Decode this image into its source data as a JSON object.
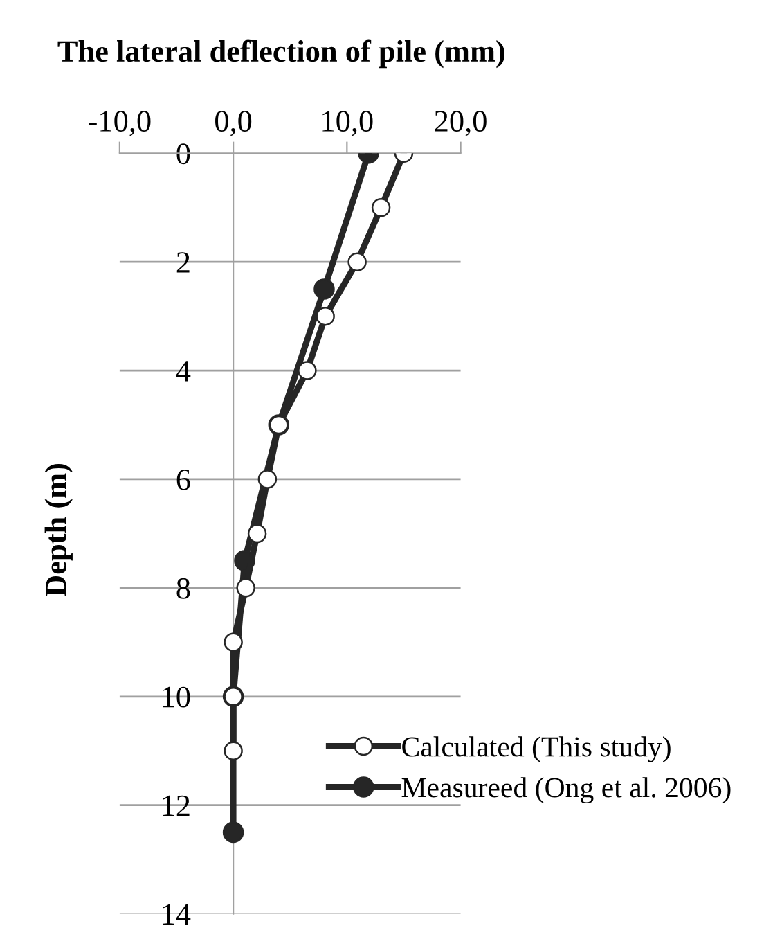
{
  "chart_data": {
    "type": "line",
    "title": "The lateral deflection of pile (mm)",
    "ylabel": "Depth (m)",
    "xlim": [
      -10,
      20
    ],
    "xticks": [
      {
        "value": -10,
        "label": "-10,0"
      },
      {
        "value": 0,
        "label": "0,0"
      },
      {
        "value": 10,
        "label": "10,0"
      },
      {
        "value": 20,
        "label": "20,0"
      }
    ],
    "ylim": [
      14,
      0
    ],
    "yticks": [
      0,
      2,
      4,
      6,
      8,
      10,
      12,
      14
    ],
    "grid": "y",
    "legend": "bottom right",
    "series": [
      {
        "name": "Calculated (This study)",
        "color": "#262626",
        "marker": "circle",
        "x": [
          15.0,
          13.0,
          10.9,
          8.1,
          6.5,
          4.0,
          3.0,
          2.1,
          1.1,
          0,
          0,
          0
        ],
        "values": [
          0,
          1,
          2,
          3,
          4,
          5,
          6,
          7,
          8,
          9,
          10,
          11
        ]
      },
      {
        "name": "Measureed (Ong et al. 2006)",
        "color": "#262626",
        "marker": "circle",
        "x": [
          11.9,
          8.0,
          4.0,
          1.0,
          0,
          0
        ],
        "values": [
          0,
          2.5,
          5,
          7.5,
          10,
          12.5
        ]
      }
    ]
  }
}
